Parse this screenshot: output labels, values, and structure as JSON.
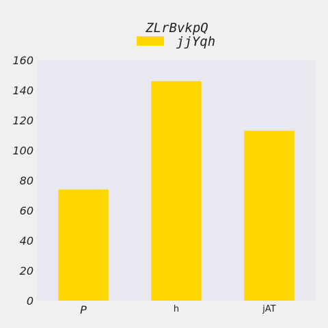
{
  "chart_data": {
    "type": "bar",
    "title": "ZLrBvkpQ",
    "xlabel": "",
    "ylabel": "",
    "categories": [
      "P",
      "h",
      "jAT"
    ],
    "series": [
      {
        "name": "jjYqh",
        "values": [
          74,
          146,
          113
        ],
        "color": "#ffd700"
      }
    ],
    "ylim": [
      0,
      160
    ],
    "yticks": [
      0,
      20,
      40,
      60,
      80,
      100,
      120,
      140,
      160
    ],
    "grid": false,
    "legend_position": "top-center",
    "plot_background": "#e9e9f1",
    "page_background": "#f0f0f0"
  }
}
